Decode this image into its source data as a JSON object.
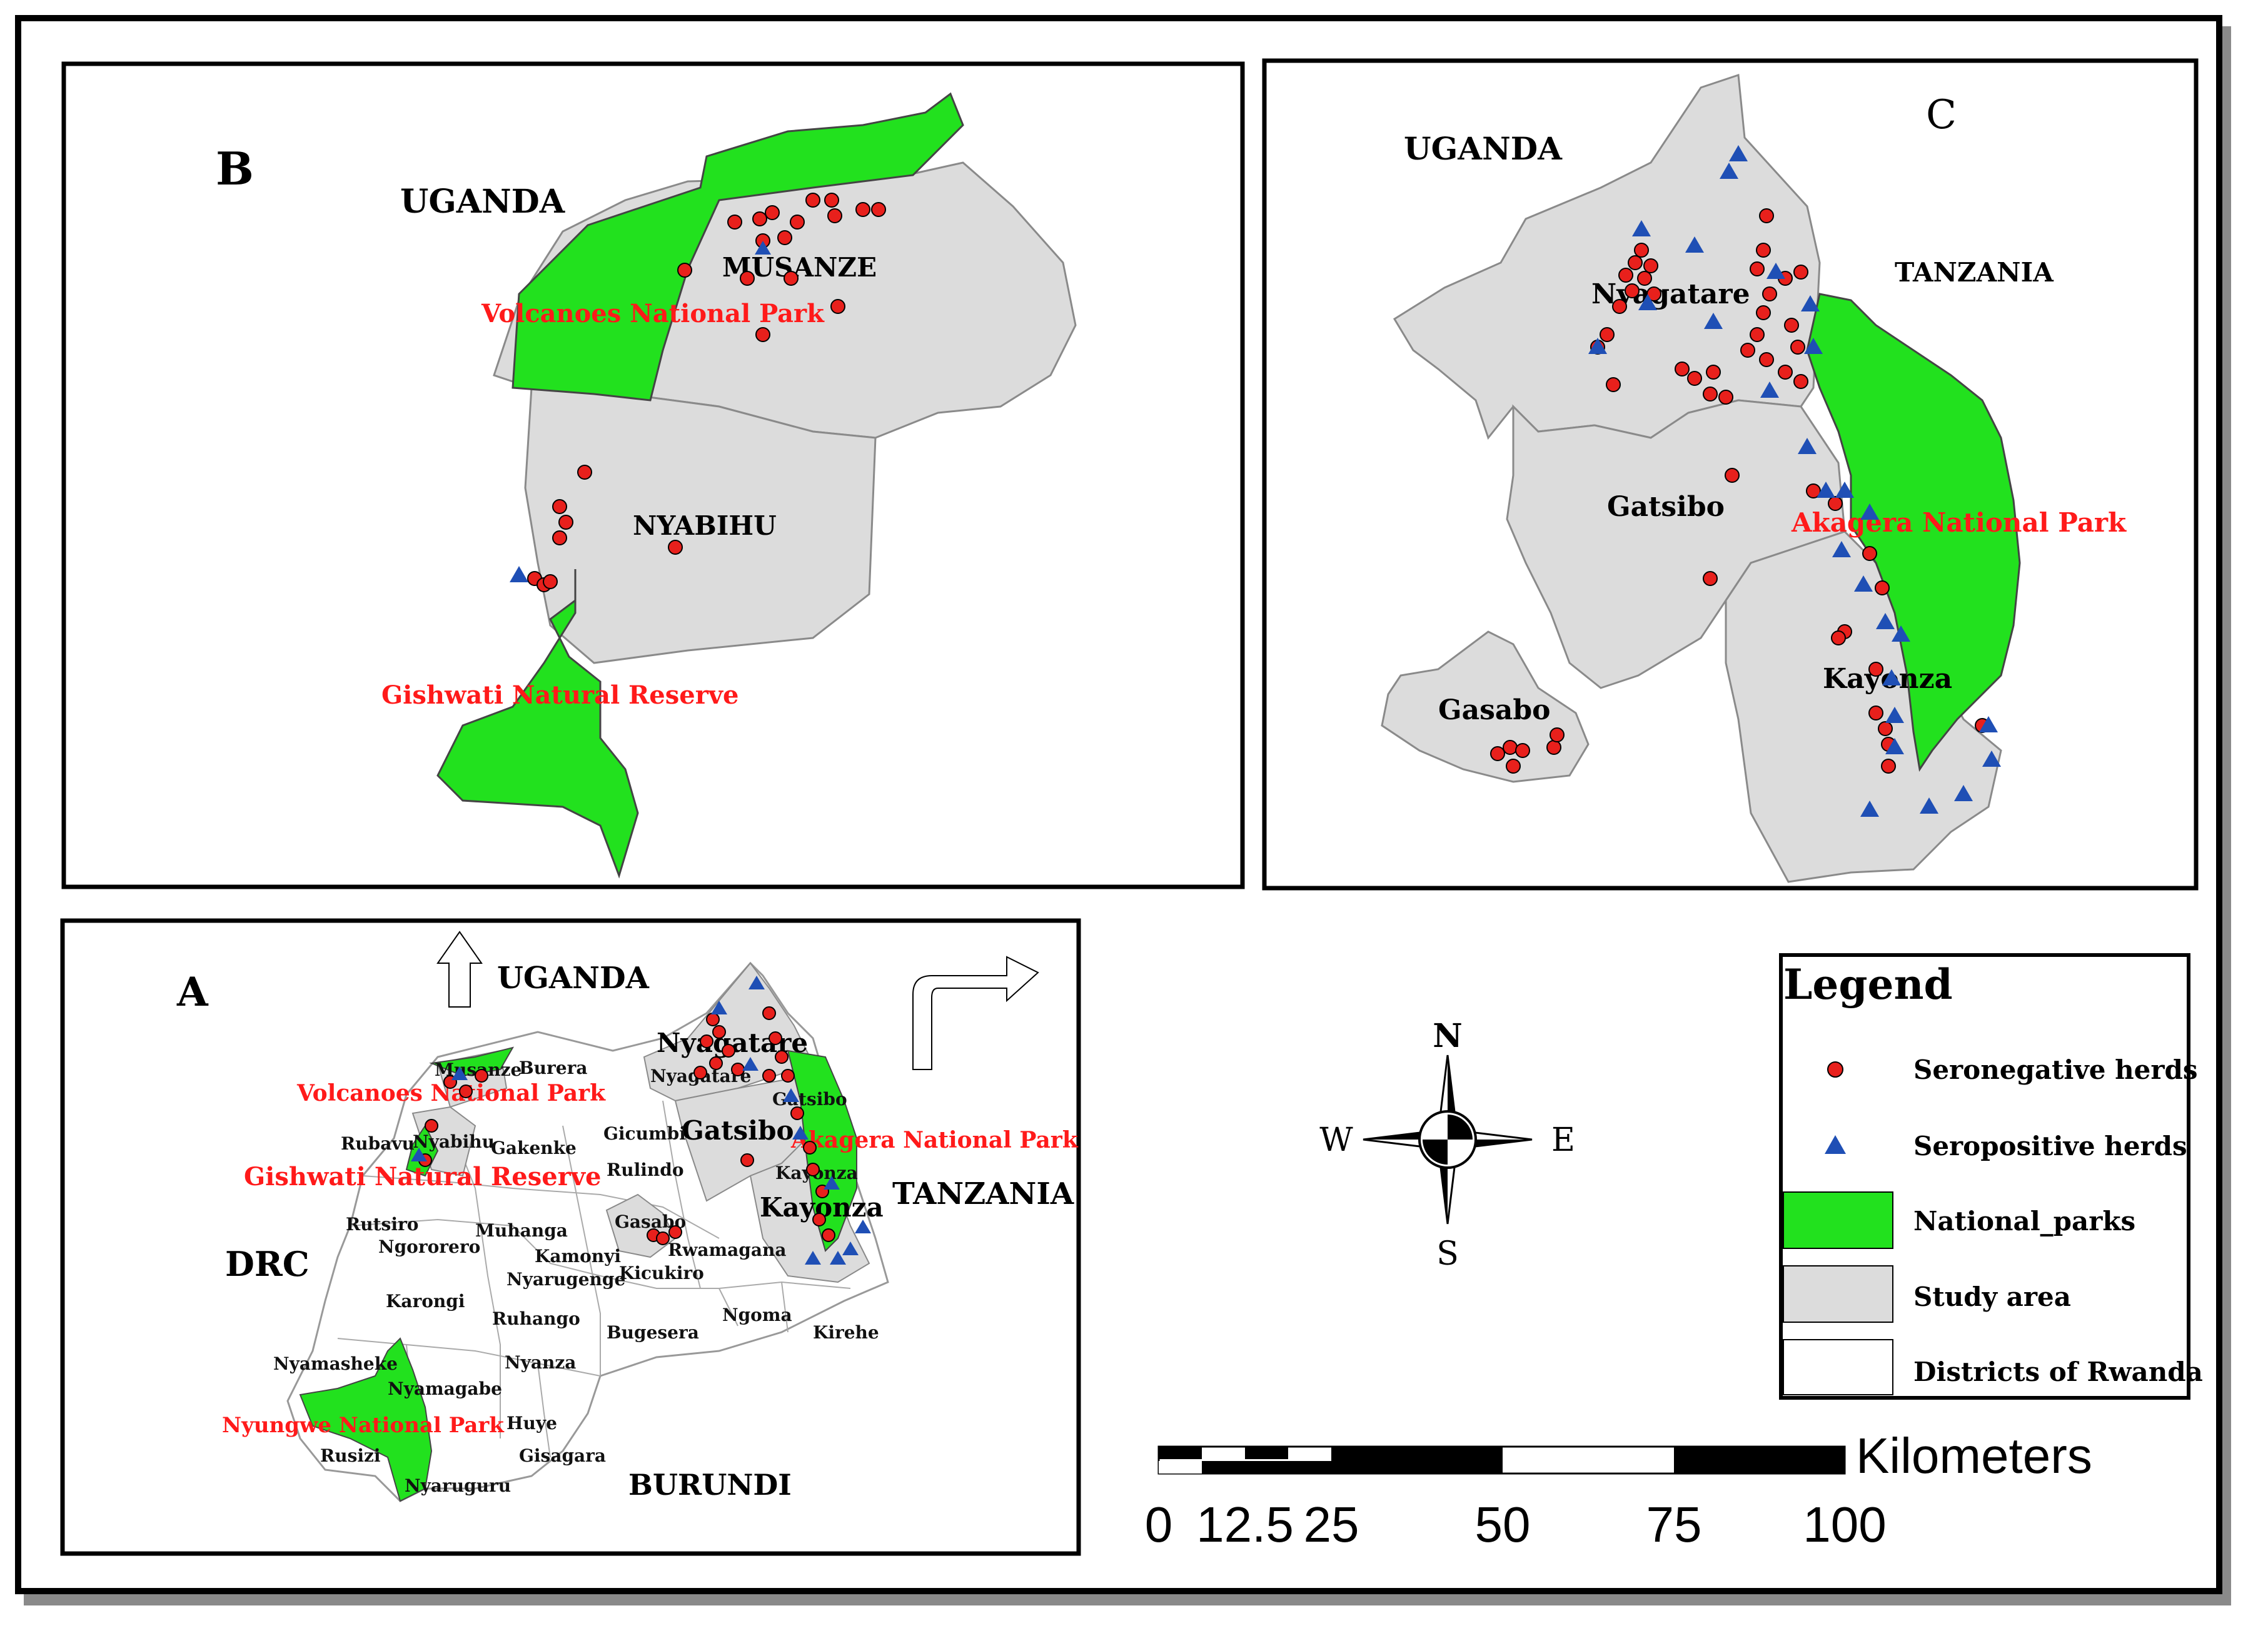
{
  "panels": {
    "A": {
      "letter": "A",
      "countries": {
        "uganda": "UGANDA",
        "drc": "DRC",
        "tanzania": "TANZANIA",
        "burundi": "BURUNDI"
      },
      "parks": {
        "volcanoes": "Volcanoes National Park",
        "gishwati": "Gishwati Natural Reserve",
        "nyungwe": "Nyungwe National Park",
        "akagera": "Akagera National Park"
      },
      "districts_bold": {
        "nyagatare": "Nyagatare",
        "gatsibo": "Gatsibo",
        "kayonza": "Kayonza"
      },
      "districts": {
        "musanze": "Musanze",
        "burera": "Burera",
        "nyagatare_small": "Nyagatare",
        "gatsibo_small": "Gatsibo",
        "rubavu": "Rubavu",
        "nyabihu": "Nyabihu",
        "gakenke": "Gakenke",
        "gicumbi": "Gicumbi",
        "rulindo": "Rulindo",
        "kayonza_small": "Kayonza",
        "rutsiro": "Rutsiro",
        "ngororero": "Ngororero",
        "muhanga": "Muhanga",
        "kamonyi": "Kamonyi",
        "nyarugenge": "Nyarugenge",
        "kicukiro": "Kicukiro",
        "gasabo": "Gasabo",
        "rwamagana": "Rwamagana",
        "karongi": "Karongi",
        "ruhango": "Ruhango",
        "bugesera": "Bugesera",
        "ngoma": "Ngoma",
        "kirehe": "Kirehe",
        "nyamasheke": "Nyamasheke",
        "nyanza": "Nyanza",
        "nyamagabe": "Nyamagabe",
        "huye": "Huye",
        "rusizi": "Rusizi",
        "gisagara": "Gisagara",
        "nyaruguru": "Nyaruguru"
      }
    },
    "B": {
      "letter": "B",
      "country": "UGANDA",
      "districts": {
        "musanze": "MUSANZE",
        "nyabihu": "NYABIHU"
      },
      "parks": {
        "volcanoes": "Volcanoes National Park",
        "gishwati": "Gishwati Natural Reserve"
      }
    },
    "C": {
      "letter": "C",
      "countries": {
        "uganda": "UGANDA",
        "tanzania": "TANZANIA"
      },
      "districts": {
        "nyagatare": "Nyagatare",
        "gatsibo": "Gatsibo",
        "gasabo": "Gasabo",
        "kayonza": "Kayonza"
      },
      "parks": {
        "akagera": "Akagera National Park"
      }
    }
  },
  "compass": {
    "n": "N",
    "s": "S",
    "e": "E",
    "w": "W"
  },
  "legend": {
    "title": "Legend",
    "items": [
      {
        "label": "Seronegative herds",
        "symbol": "red-circle",
        "color": "#e8201c"
      },
      {
        "label": "Seropositive herds",
        "symbol": "blue-triangle",
        "color": "#1f4fb5"
      },
      {
        "label": "National_parks",
        "symbol": "fill",
        "color": "#22e11e"
      },
      {
        "label": "Study area",
        "symbol": "fill",
        "color": "#dcdcdc"
      },
      {
        "label": "Districts of Rwanda",
        "symbol": "fill",
        "color": "#ffffff"
      }
    ]
  },
  "scalebar": {
    "unit": "Kilometers",
    "ticks": [
      "0",
      "12.5",
      "25",
      "50",
      "75",
      "100"
    ]
  },
  "colors": {
    "park": "#22e11e",
    "study": "#dcdcdc",
    "district": "#ffffff",
    "seronegative": "#e8201c",
    "seropositive": "#1f4fb5",
    "park_label": "#ff1a1a"
  }
}
